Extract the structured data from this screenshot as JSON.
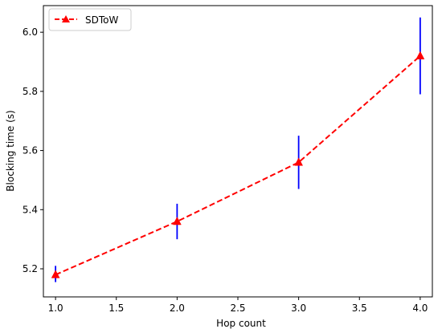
{
  "chart_data": {
    "type": "line",
    "title": "",
    "xlabel": "Hop count",
    "ylabel": "Blocking time (s)",
    "xlim": [
      0.9,
      4.1
    ],
    "ylim": [
      5.105,
      6.09
    ],
    "x_ticks": [
      "1.0",
      "1.5",
      "2.0",
      "2.5",
      "3.0",
      "3.5",
      "4.0"
    ],
    "y_ticks": [
      "5.2",
      "5.4",
      "5.6",
      "5.8",
      "6.0"
    ],
    "grid": false,
    "legend_position": "top-left",
    "series": [
      {
        "name": "SDToW",
        "x": [
          1.0,
          2.0,
          3.0,
          4.0
        ],
        "y": [
          5.18,
          5.36,
          5.56,
          5.92
        ],
        "err_low": [
          5.155,
          5.3,
          5.47,
          5.79
        ],
        "err_high": [
          5.21,
          5.42,
          5.65,
          6.05
        ],
        "line_color": "#ff0000",
        "line_style": "dashed",
        "marker": "triangle-up",
        "errorbar_color": "#0000ff"
      }
    ]
  }
}
